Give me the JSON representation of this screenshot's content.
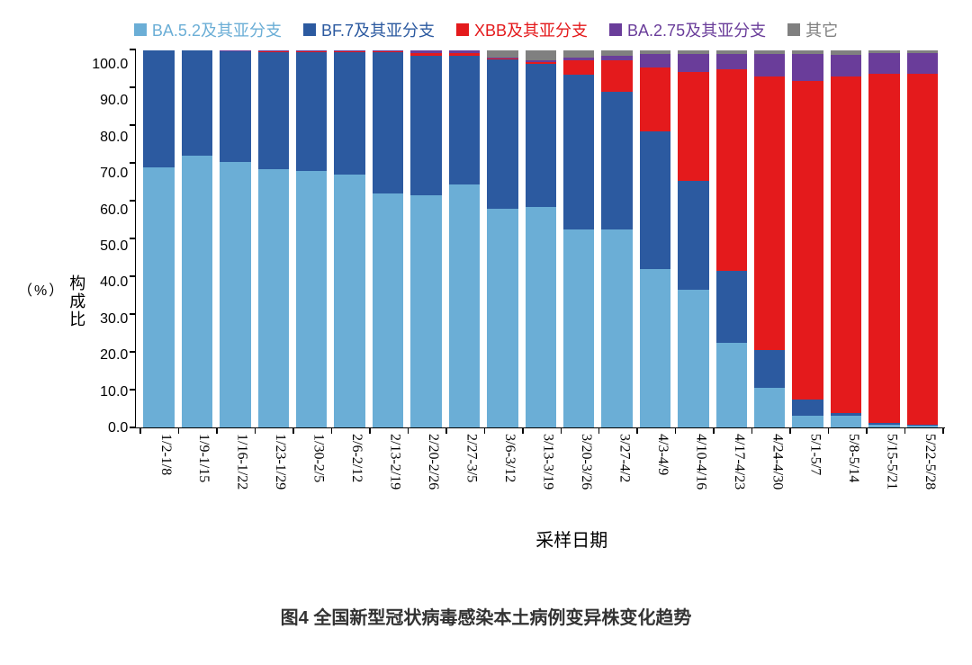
{
  "chart": {
    "type": "stacked-bar",
    "background_color": "#ffffff",
    "axis_color": "#000000",
    "text_color": "#000000",
    "font_family": "Microsoft YaHei, SimSun, sans-serif",
    "x_label_font_family": "Times New Roman, serif",
    "title_fontsize": 20,
    "legend_fontsize": 18,
    "axis_label_fontsize": 18,
    "tick_fontsize": 16,
    "bar_gap_ratio": 0.18,
    "ylim": [
      0,
      100
    ],
    "ytick_step": 10,
    "yticks": [
      "0.0",
      "10.0",
      "20.0",
      "30.0",
      "40.0",
      "50.0",
      "60.0",
      "70.0",
      "80.0",
      "90.0",
      "100.0"
    ],
    "y_axis_label": "构成比",
    "y_axis_unit": "（%）",
    "x_axis_label": "采样日期",
    "legend": [
      {
        "key": "ba52",
        "label": "BA.5.2及其亚分支",
        "color": "#6baed6"
      },
      {
        "key": "bf7",
        "label": "BF.7及其亚分支",
        "color": "#2c5aa0"
      },
      {
        "key": "xbb",
        "label": "XBB及其亚分支",
        "color": "#e41a1c"
      },
      {
        "key": "ba275",
        "label": "BA.2.75及其亚分支",
        "color": "#6a3d9a"
      },
      {
        "key": "other",
        "label": "其它",
        "color": "#808080"
      }
    ],
    "stack_order": [
      "ba52",
      "bf7",
      "xbb",
      "ba275",
      "other"
    ],
    "categories": [
      "1/2-1/8",
      "1/9-1/15",
      "1/16-1/22",
      "1/23-1/29",
      "1/30-2/5",
      "2/6-2/12",
      "2/13-2/19",
      "2/20-2/26",
      "2/27-3/5",
      "3/6-3/12",
      "3/13-3/19",
      "3/20-3/26",
      "3/27-4/2",
      "4/3-4/9",
      "4/10-4/16",
      "4/17-4/23",
      "4/24-4/30",
      "5/1-5/7",
      "5/8-5/14",
      "5/15-5/21",
      "5/22-5/28"
    ],
    "series": {
      "ba52": [
        69.0,
        72.0,
        70.5,
        68.5,
        68.0,
        67.0,
        62.0,
        61.5,
        64.5,
        58.0,
        58.5,
        52.5,
        52.5,
        42.0,
        36.5,
        22.5,
        10.5,
        3.0,
        3.0,
        0.7,
        0.5
      ],
      "bf7": [
        31.0,
        28.0,
        29.2,
        31.0,
        31.5,
        32.5,
        37.5,
        37.0,
        34.0,
        39.5,
        38.0,
        41.0,
        36.5,
        36.5,
        29.0,
        19.0,
        10.0,
        4.5,
        0.8,
        0.4,
        0.3
      ],
      "xbb": [
        0.0,
        0.0,
        0.1,
        0.2,
        0.2,
        0.2,
        0.2,
        0.7,
        0.7,
        0.3,
        0.5,
        4.0,
        8.5,
        17.0,
        28.7,
        53.5,
        72.5,
        84.5,
        89.4,
        92.6,
        92.9
      ],
      "ba275": [
        0.0,
        0.0,
        0.1,
        0.2,
        0.2,
        0.2,
        0.2,
        0.7,
        0.7,
        0.2,
        0.3,
        0.5,
        1.0,
        3.5,
        4.8,
        4.0,
        6.0,
        7.0,
        5.6,
        5.5,
        5.5
      ],
      "other": [
        0.0,
        0.0,
        0.1,
        0.1,
        0.1,
        0.1,
        0.1,
        0.1,
        0.1,
        2.0,
        2.7,
        2.0,
        1.5,
        1.0,
        1.0,
        1.0,
        1.0,
        1.0,
        1.2,
        0.8,
        0.8
      ]
    }
  },
  "caption": "图4 全国新型冠状病毒感染本土病例变异株变化趋势"
}
